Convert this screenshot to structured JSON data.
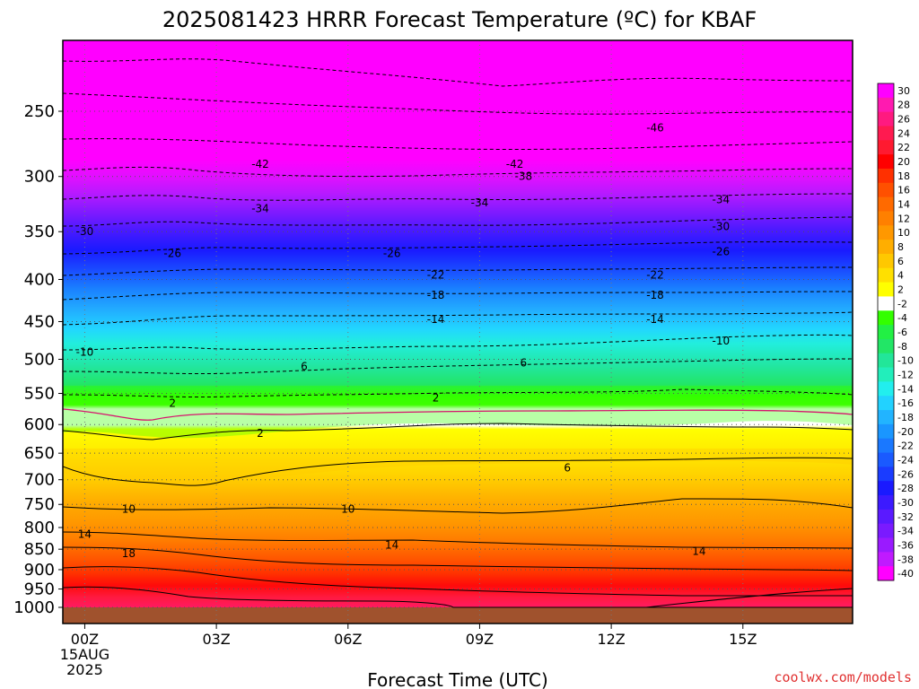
{
  "chart_data": {
    "type": "heatmap",
    "title": "2025081423 HRRR Forecast Temperature (ºC) for KBAF",
    "xlabel": "Forecast Time (UTC)",
    "credit": "coolwx.com/models",
    "y_axis": {
      "scale": "log",
      "inverted": true,
      "range": [
        1000,
        200
      ],
      "ticks": [
        250,
        300,
        350,
        400,
        450,
        500,
        550,
        600,
        650,
        700,
        750,
        800,
        850,
        900,
        950,
        1000
      ]
    },
    "x_axis": {
      "range_hours": [
        -0.5,
        17.5
      ],
      "ticks": [
        {
          "hour": 0,
          "label": "00Z",
          "date_line1": "15AUG",
          "date_line2": "2025"
        },
        {
          "hour": 3,
          "label": "03Z"
        },
        {
          "hour": 6,
          "label": "06Z"
        },
        {
          "hour": 9,
          "label": "09Z"
        },
        {
          "hour": 12,
          "label": "12Z"
        },
        {
          "hour": 15,
          "label": "15Z"
        }
      ]
    },
    "grid": "dotted",
    "colorbar": {
      "placement": "right",
      "labels": [
        "30",
        "28",
        "26",
        "24",
        "22",
        "20",
        "18",
        "16",
        "14",
        "12",
        "10",
        "8",
        "6",
        "4",
        "2",
        "-2",
        "-4",
        "-6",
        "-8",
        "-10",
        "-12",
        "-14",
        "-16",
        "-18",
        "-20",
        "-22",
        "-24",
        "-26",
        "-28",
        "-30",
        "-32",
        "-34",
        "-36",
        "-38",
        "-40"
      ],
      "colors": [
        "#ff00ff",
        "#ff1ab0",
        "#ff1a80",
        "#ff1a50",
        "#ff1a30",
        "#ff0000",
        "#ff3000",
        "#ff5000",
        "#ff6a00",
        "#ff8000",
        "#ff9800",
        "#ffae00",
        "#ffc800",
        "#ffe000",
        "#ffff00",
        "#ffffff",
        "#33ff00",
        "#22f044",
        "#22e666",
        "#22e699",
        "#22eebb",
        "#22eeee",
        "#22d2ff",
        "#22b4ff",
        "#1a96ff",
        "#1a78ff",
        "#1a5aff",
        "#1a3cff",
        "#1a1aff",
        "#3c1aff",
        "#5a1aff",
        "#7a1aff",
        "#9a1aff",
        "#c01aff",
        "#ff00ff"
      ]
    },
    "contour_labels": [
      {
        "value": "-46",
        "hour": 13.0,
        "p": 262
      },
      {
        "value": "-42",
        "hour": 4.0,
        "p": 290
      },
      {
        "value": "-42",
        "hour": 9.8,
        "p": 290
      },
      {
        "value": "-38",
        "hour": 10.0,
        "p": 300
      },
      {
        "value": "-34",
        "hour": 4.0,
        "p": 328
      },
      {
        "value": "-34",
        "hour": 9.0,
        "p": 323
      },
      {
        "value": "-34",
        "hour": 14.5,
        "p": 320
      },
      {
        "value": "-30",
        "hour": 0.0,
        "p": 350
      },
      {
        "value": "-30",
        "hour": 14.5,
        "p": 345
      },
      {
        "value": "-26",
        "hour": 2.0,
        "p": 372
      },
      {
        "value": "-26",
        "hour": 7.0,
        "p": 372
      },
      {
        "value": "-26",
        "hour": 14.5,
        "p": 370
      },
      {
        "value": "-22",
        "hour": 8.0,
        "p": 395
      },
      {
        "value": "-22",
        "hour": 13.0,
        "p": 395
      },
      {
        "value": "-18",
        "hour": 8.0,
        "p": 418
      },
      {
        "value": "-18",
        "hour": 13.0,
        "p": 418
      },
      {
        "value": "-14",
        "hour": 8.0,
        "p": 447
      },
      {
        "value": "-14",
        "hour": 13.0,
        "p": 447
      },
      {
        "value": "-10",
        "hour": 0.0,
        "p": 490
      },
      {
        "value": "-10",
        "hour": 14.5,
        "p": 475
      },
      {
        "value": "6",
        "hour": 5.0,
        "p": 510
      },
      {
        "value": "6",
        "hour": 10.0,
        "p": 505
      },
      {
        "value": "2",
        "hour": 2.0,
        "p": 565
      },
      {
        "value": "2",
        "hour": 8.0,
        "p": 557
      },
      {
        "value": "2",
        "hour": 4.0,
        "p": 615
      },
      {
        "value": "6",
        "hour": 11.0,
        "p": 677
      },
      {
        "value": "10",
        "hour": 1.0,
        "p": 760
      },
      {
        "value": "10",
        "hour": 6.0,
        "p": 760
      },
      {
        "value": "14",
        "hour": 0.0,
        "p": 815
      },
      {
        "value": "14",
        "hour": 7.0,
        "p": 840
      },
      {
        "value": "14",
        "hour": 14.0,
        "p": 855
      },
      {
        "value": "18",
        "hour": 1.0,
        "p": 860
      }
    ]
  }
}
